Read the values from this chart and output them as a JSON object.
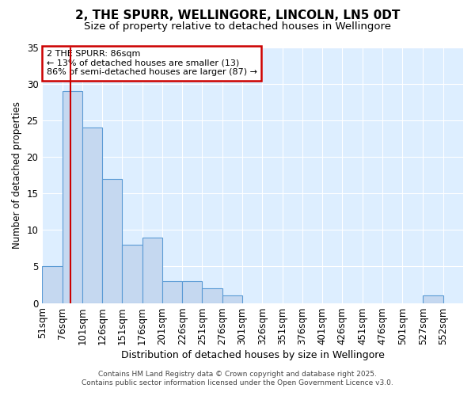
{
  "title1": "2, THE SPURR, WELLINGORE, LINCOLN, LN5 0DT",
  "title2": "Size of property relative to detached houses in Wellingore",
  "xlabel": "Distribution of detached houses by size in Wellingore",
  "ylabel": "Number of detached properties",
  "bins": [
    51,
    76,
    101,
    126,
    151,
    176,
    201,
    226,
    251,
    276,
    301,
    326,
    351,
    376,
    401,
    426,
    451,
    476,
    501,
    527,
    552
  ],
  "bin_labels": [
    "51sqm",
    "76sqm",
    "101sqm",
    "126sqm",
    "151sqm",
    "176sqm",
    "201sqm",
    "226sqm",
    "251sqm",
    "276sqm",
    "301sqm",
    "326sqm",
    "351sqm",
    "376sqm",
    "401sqm",
    "426sqm",
    "451sqm",
    "476sqm",
    "501sqm",
    "527sqm",
    "552sqm"
  ],
  "values": [
    5,
    29,
    24,
    17,
    8,
    9,
    3,
    3,
    2,
    1,
    0,
    0,
    0,
    0,
    0,
    0,
    0,
    0,
    0,
    1,
    0
  ],
  "bar_color": "#c5d8f0",
  "bar_edge_color": "#5b9bd5",
  "vline_x": 86,
  "vline_color": "#cc0000",
  "annotation_title": "2 THE SPURR: 86sqm",
  "annotation_line1": "← 13% of detached houses are smaller (13)",
  "annotation_line2": "86% of semi-detached houses are larger (87) →",
  "annotation_box_color": "#cc0000",
  "ylim": [
    0,
    35
  ],
  "yticks": [
    0,
    5,
    10,
    15,
    20,
    25,
    30,
    35
  ],
  "footer1": "Contains HM Land Registry data © Crown copyright and database right 2025.",
  "footer2": "Contains public sector information licensed under the Open Government Licence v3.0.",
  "bg_color": "#ffffff",
  "plot_bg_color": "#ddeeff",
  "grid_color": "#ffffff",
  "title1_fontsize": 11,
  "title2_fontsize": 9.5
}
